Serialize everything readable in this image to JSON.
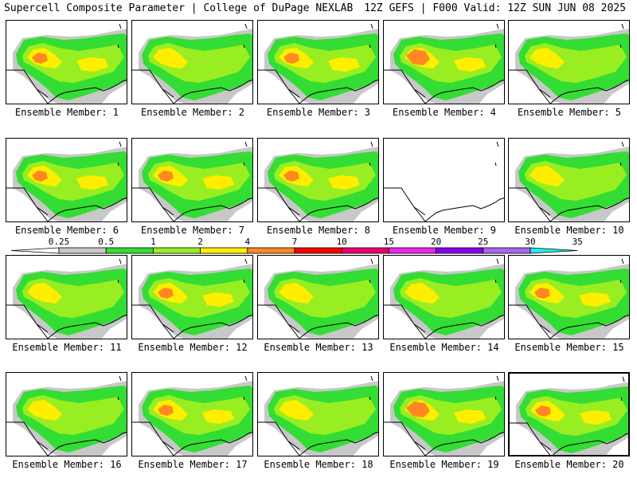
{
  "header": {
    "title": "Supercell Composite Parameter | College of DuPage NEXLAB",
    "run_info": "12Z GEFS | F000 Valid: 12Z SUN JUN 08 2025"
  },
  "colors": {
    "lt_gray": "#c8c8c8",
    "green": "#33dd33",
    "lime": "#99ee22",
    "yellow": "#ffee00",
    "orange": "#ff8822",
    "red": "#ff0000",
    "crimson": "#e8006c",
    "magenta": "#ee22ee",
    "purple": "#8800ee",
    "violet": "#aa66ee",
    "cyan": "#22eeee"
  },
  "legend": {
    "labels": [
      "0.25",
      "0.5",
      "1",
      "2",
      "4",
      "7",
      "10",
      "15",
      "20",
      "25",
      "30",
      "35"
    ],
    "bins": [
      "lt_gray",
      "green",
      "lime",
      "yellow",
      "orange",
      "red",
      "crimson",
      "magenta",
      "purple",
      "violet",
      "cyan"
    ]
  },
  "members": [
    {
      "label": "Ensemble Member: 1",
      "intensity": 2
    },
    {
      "label": "Ensemble Member: 2",
      "intensity": 1
    },
    {
      "label": "Ensemble Member: 3",
      "intensity": 2
    },
    {
      "label": "Ensemble Member: 4",
      "intensity": 3
    },
    {
      "label": "Ensemble Member: 5",
      "intensity": 1
    },
    {
      "label": "Ensemble Member: 6",
      "intensity": 2
    },
    {
      "label": "Ensemble Member: 7",
      "intensity": 2
    },
    {
      "label": "Ensemble Member: 8",
      "intensity": 2
    },
    {
      "label": "Ensemble Member: 9",
      "intensity": 0
    },
    {
      "label": "Ensemble Member: 10",
      "intensity": 1
    },
    {
      "label": "Ensemble Member: 11",
      "intensity": 1
    },
    {
      "label": "Ensemble Member: 12",
      "intensity": 2
    },
    {
      "label": "Ensemble Member: 13",
      "intensity": 1
    },
    {
      "label": "Ensemble Member: 14",
      "intensity": 1
    },
    {
      "label": "Ensemble Member: 15",
      "intensity": 2
    },
    {
      "label": "Ensemble Member: 16",
      "intensity": 1
    },
    {
      "label": "Ensemble Member: 17",
      "intensity": 2
    },
    {
      "label": "Ensemble Member: 18",
      "intensity": 1
    },
    {
      "label": "Ensemble Member: 19",
      "intensity": 3
    },
    {
      "label": "Ensemble Member: 20",
      "intensity": 2
    }
  ],
  "selected_member": 20
}
